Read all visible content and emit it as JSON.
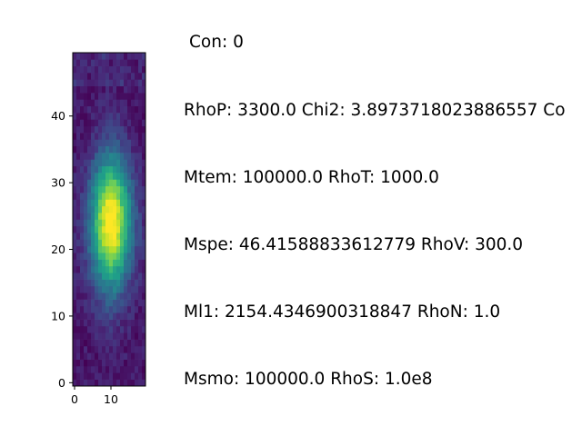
{
  "chart_data": {
    "type": "heatmap",
    "title": "",
    "xlabel": "",
    "ylabel": "",
    "xlim": [
      -0.5,
      19.5
    ],
    "ylim": [
      -0.5,
      49.5
    ],
    "x_ticks": [
      0,
      10
    ],
    "y_ticks": [
      0,
      10,
      20,
      30,
      40
    ],
    "x_tick_labels": [
      "0",
      "10"
    ],
    "y_tick_labels": [
      "0",
      "10",
      "20",
      "30",
      "40"
    ],
    "colormap": "viridis",
    "grid": false,
    "description_of_values": "20 x 50 intensity image (values 0-1); bright blob centred near x=10, y=24"
  },
  "info": {
    "con": "Con: 0",
    "lines": [
      "RhoP: 3300.0 Chi2: 3.8973718023886557 Co",
      "Mtem: 100000.0 RhoT: 1000.0",
      "Mspe: 46.41588833612779 RhoV: 300.0",
      "Ml1: 2154.4346900318847 RhoN: 1.0",
      "Msmo: 100000.0 RhoS: 1.0e8"
    ]
  },
  "colors": {
    "text": "#000000",
    "background": "#ffffff"
  }
}
